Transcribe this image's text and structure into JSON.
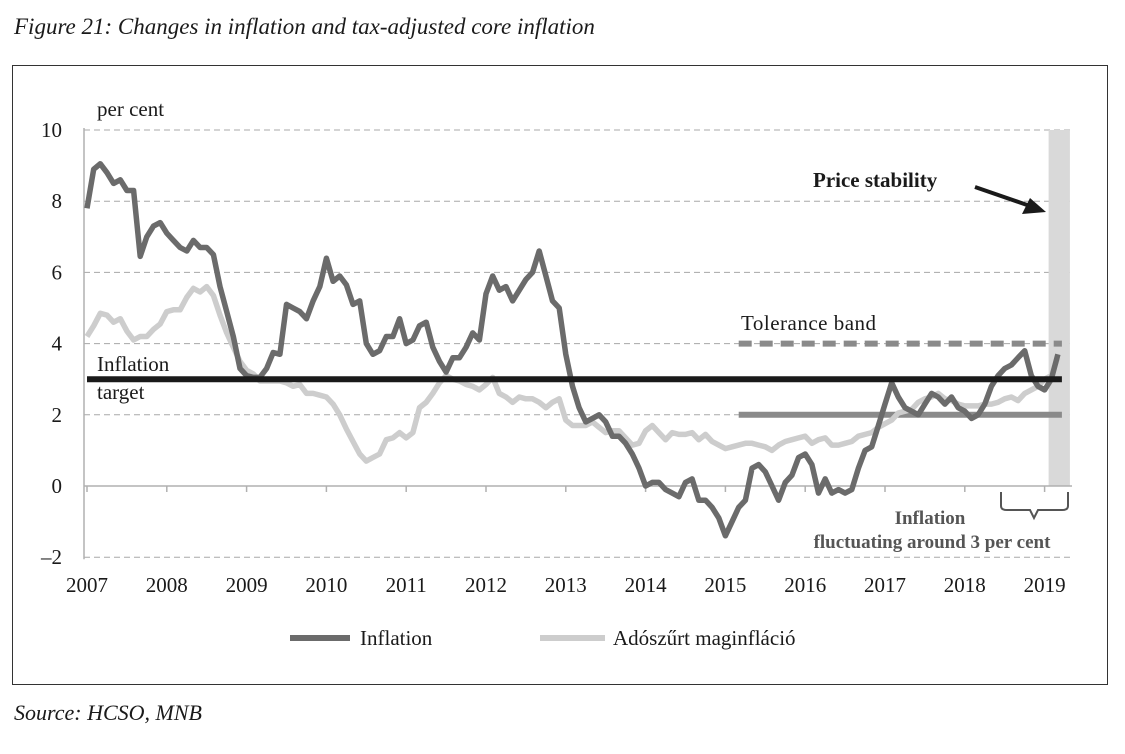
{
  "figure": {
    "title": "Figure 21: Changes in inflation and tax-adjusted core inflation",
    "source": "Source: HCSO, MNB"
  },
  "chart_data": {
    "type": "line",
    "ylabel": "per cent",
    "ylim": [
      -2,
      10
    ],
    "yticks": [
      10,
      8,
      6,
      4,
      2,
      0,
      -2
    ],
    "ytick_labels": [
      "10",
      "8",
      "6",
      "4",
      "2",
      "0",
      "–2"
    ],
    "xticks": [
      "2007",
      "2008",
      "2009",
      "2010",
      "2011",
      "2012",
      "2013",
      "2014",
      "2015",
      "2016",
      "2017",
      "2018",
      "2019"
    ],
    "grid": true,
    "legend_position": "bottom",
    "x": [
      "2007-01",
      "2007-02",
      "2007-03",
      "2007-04",
      "2007-05",
      "2007-06",
      "2007-07",
      "2007-08",
      "2007-09",
      "2007-10",
      "2007-11",
      "2007-12",
      "2008-01",
      "2008-02",
      "2008-03",
      "2008-04",
      "2008-05",
      "2008-06",
      "2008-07",
      "2008-08",
      "2008-09",
      "2008-10",
      "2008-11",
      "2008-12",
      "2009-01",
      "2009-02",
      "2009-03",
      "2009-04",
      "2009-05",
      "2009-06",
      "2009-07",
      "2009-08",
      "2009-09",
      "2009-10",
      "2009-11",
      "2009-12",
      "2010-01",
      "2010-02",
      "2010-03",
      "2010-04",
      "2010-05",
      "2010-06",
      "2010-07",
      "2010-08",
      "2010-09",
      "2010-10",
      "2010-11",
      "2010-12",
      "2011-01",
      "2011-02",
      "2011-03",
      "2011-04",
      "2011-05",
      "2011-06",
      "2011-07",
      "2011-08",
      "2011-09",
      "2011-10",
      "2011-11",
      "2011-12",
      "2012-01",
      "2012-02",
      "2012-03",
      "2012-04",
      "2012-05",
      "2012-06",
      "2012-07",
      "2012-08",
      "2012-09",
      "2012-10",
      "2012-11",
      "2012-12",
      "2013-01",
      "2013-02",
      "2013-03",
      "2013-04",
      "2013-05",
      "2013-06",
      "2013-07",
      "2013-08",
      "2013-09",
      "2013-10",
      "2013-11",
      "2013-12",
      "2014-01",
      "2014-02",
      "2014-03",
      "2014-04",
      "2014-05",
      "2014-06",
      "2014-07",
      "2014-08",
      "2014-09",
      "2014-10",
      "2014-11",
      "2014-12",
      "2015-01",
      "2015-02",
      "2015-03",
      "2015-04",
      "2015-05",
      "2015-06",
      "2015-07",
      "2015-08",
      "2015-09",
      "2015-10",
      "2015-11",
      "2015-12",
      "2016-01",
      "2016-02",
      "2016-03",
      "2016-04",
      "2016-05",
      "2016-06",
      "2016-07",
      "2016-08",
      "2016-09",
      "2016-10",
      "2016-11",
      "2016-12",
      "2017-01",
      "2017-02",
      "2017-03",
      "2017-04",
      "2017-05",
      "2017-06",
      "2017-07",
      "2017-08",
      "2017-09",
      "2017-10",
      "2017-11",
      "2017-12",
      "2018-01",
      "2018-02",
      "2018-03",
      "2018-04",
      "2018-05",
      "2018-06",
      "2018-07",
      "2018-08",
      "2018-09",
      "2018-10",
      "2018-11",
      "2018-12",
      "2019-01",
      "2019-02",
      "2019-03"
    ],
    "series": [
      {
        "name": "Inflation",
        "color": "#6b6b6b",
        "values": [
          7.8,
          8.9,
          9.05,
          8.8,
          8.5,
          8.6,
          8.3,
          8.3,
          6.45,
          7.0,
          7.3,
          7.4,
          7.1,
          6.9,
          6.7,
          6.6,
          6.9,
          6.7,
          6.7,
          6.5,
          5.6,
          4.9,
          4.2,
          3.3,
          3.1,
          3.05,
          3.05,
          3.3,
          3.75,
          3.7,
          5.1,
          5.0,
          4.9,
          4.7,
          5.2,
          5.6,
          6.4,
          5.75,
          5.9,
          5.65,
          5.1,
          5.2,
          4.0,
          3.7,
          3.8,
          4.2,
          4.2,
          4.7,
          4.0,
          4.1,
          4.5,
          4.6,
          3.9,
          3.5,
          3.2,
          3.6,
          3.6,
          3.9,
          4.3,
          4.1,
          5.4,
          5.9,
          5.5,
          5.6,
          5.2,
          5.5,
          5.8,
          6.0,
          6.6,
          5.9,
          5.2,
          5.0,
          3.7,
          2.8,
          2.2,
          1.8,
          1.9,
          2.0,
          1.8,
          1.4,
          1.4,
          1.2,
          0.9,
          0.5,
          0.0,
          0.1,
          0.1,
          -0.1,
          -0.2,
          -0.3,
          0.1,
          0.2,
          -0.4,
          -0.4,
          -0.6,
          -0.9,
          -1.4,
          -1.0,
          -0.6,
          -0.4,
          0.5,
          0.6,
          0.4,
          0.0,
          -0.4,
          0.1,
          0.3,
          0.8,
          0.9,
          0.6,
          -0.2,
          0.2,
          -0.2,
          -0.1,
          -0.2,
          -0.1,
          0.5,
          1.0,
          1.1,
          1.7,
          2.3,
          2.9,
          2.5,
          2.2,
          2.1,
          2.0,
          2.3,
          2.6,
          2.5,
          2.3,
          2.5,
          2.2,
          2.1,
          1.9,
          2.0,
          2.3,
          2.8,
          3.1,
          3.3,
          3.4,
          3.6,
          3.8,
          3.1,
          2.8,
          2.7,
          3.0,
          3.7
        ]
      },
      {
        "name": "Adószűrt maginfláció",
        "color": "#cdcdcd",
        "values": [
          4.2,
          4.5,
          4.85,
          4.8,
          4.6,
          4.7,
          4.35,
          4.1,
          4.2,
          4.2,
          4.4,
          4.55,
          4.9,
          4.95,
          4.95,
          5.3,
          5.55,
          5.45,
          5.6,
          5.35,
          4.8,
          4.3,
          3.9,
          3.5,
          3.25,
          3.15,
          2.95,
          2.95,
          2.95,
          2.95,
          2.9,
          2.8,
          2.85,
          2.6,
          2.6,
          2.55,
          2.5,
          2.3,
          2.0,
          1.6,
          1.25,
          0.9,
          0.7,
          0.8,
          0.9,
          1.3,
          1.35,
          1.5,
          1.35,
          1.5,
          2.2,
          2.35,
          2.6,
          2.9,
          3.1,
          3.0,
          2.95,
          2.85,
          2.8,
          2.7,
          2.85,
          3.05,
          2.6,
          2.5,
          2.35,
          2.5,
          2.45,
          2.45,
          2.35,
          2.2,
          2.35,
          2.45,
          1.85,
          1.7,
          1.7,
          1.7,
          1.8,
          1.65,
          1.5,
          1.55,
          1.55,
          1.35,
          1.15,
          1.2,
          1.55,
          1.7,
          1.5,
          1.3,
          1.5,
          1.45,
          1.45,
          1.5,
          1.3,
          1.45,
          1.25,
          1.15,
          1.05,
          1.1,
          1.15,
          1.2,
          1.2,
          1.15,
          1.1,
          1.0,
          1.15,
          1.25,
          1.3,
          1.35,
          1.4,
          1.2,
          1.3,
          1.35,
          1.15,
          1.15,
          1.2,
          1.25,
          1.4,
          1.45,
          1.5,
          1.65,
          1.75,
          1.85,
          2.05,
          2.1,
          2.15,
          2.35,
          2.45,
          2.5,
          2.6,
          2.45,
          2.4,
          2.3,
          2.25,
          2.25,
          2.25,
          2.3,
          2.3,
          2.35,
          2.45,
          2.5,
          2.4,
          2.6,
          2.7,
          2.8,
          3.0,
          3.1,
          3.6
        ]
      }
    ],
    "reference_lines": {
      "inflation_target": {
        "value": 3,
        "from": "2007-01",
        "to": "2019-03",
        "color": "#1a1a1a"
      },
      "tolerance_band_upper": {
        "value": 4,
        "from": "2015-03",
        "to": "2019-03",
        "color": "#8a8a8a",
        "style": "dashed"
      },
      "tolerance_band_lower": {
        "value": 2,
        "from": "2015-03",
        "to": "2019-03",
        "color": "#8a8a8a",
        "style": "solid"
      }
    },
    "shaded_region": {
      "from": "2019-01",
      "to": "2019-03",
      "ymin": 0,
      "ymax": 10,
      "color": "#d9d9d9"
    },
    "annotations": {
      "target_line1": "Inflation",
      "target_line2": "target",
      "tolerance": "Tolerance band",
      "price_stability": "Price stability",
      "fluct_line1": "Inflation",
      "fluct_line2": "fluctuating around 3 per cent"
    }
  }
}
